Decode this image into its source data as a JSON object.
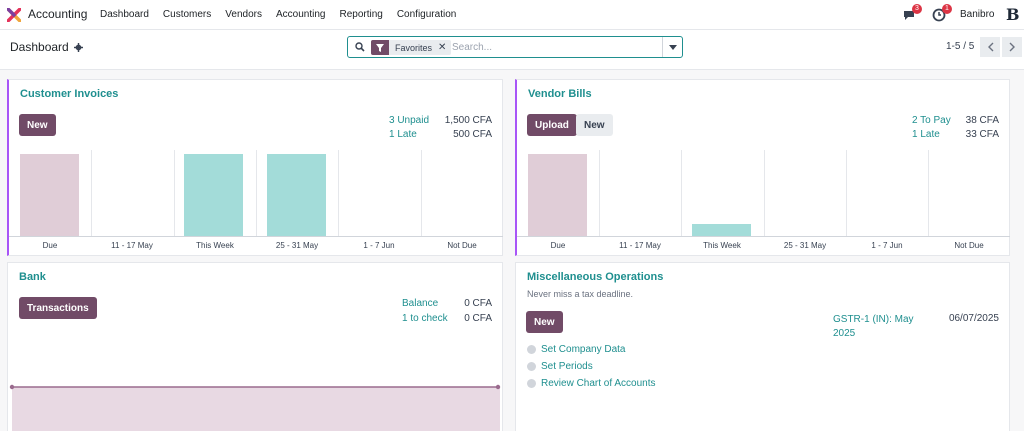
{
  "navbar": {
    "app_name": "Accounting",
    "menu": [
      "Dashboard",
      "Customers",
      "Vendors",
      "Accounting",
      "Reporting",
      "Configuration"
    ],
    "messages_count": "3",
    "activities_count": "1",
    "user_name": "Banibro",
    "user_avatar": "B"
  },
  "control_panel": {
    "title": "Dashboard",
    "facet": "Favorites",
    "search_placeholder": "Search...",
    "pager": "1-5 / 5"
  },
  "customer_invoices": {
    "title": "Customer Invoices",
    "new_label": "New",
    "stats": [
      {
        "label": "3 Unpaid",
        "value": "1,500 CFA"
      },
      {
        "label": "1 Late",
        "value": "500 CFA"
      }
    ],
    "chart_data": {
      "type": "bar",
      "categories": [
        "Due",
        "11 - 17 May",
        "This Week",
        "25 - 31 May",
        "1 - 7 Jun",
        "Not Due"
      ],
      "values": [
        1,
        0,
        1,
        1,
        0,
        0
      ],
      "colors": [
        "#e0cdd7",
        "#a3dcd9",
        "#a3dcd9",
        "#a3dcd9",
        "#a3dcd9",
        "#a3dcd9"
      ]
    }
  },
  "vendor_bills": {
    "title": "Vendor Bills",
    "upload_label": "Upload",
    "new_label": "New",
    "stats": [
      {
        "label": "2 To Pay",
        "value": "38 CFA"
      },
      {
        "label": "1 Late",
        "value": "33 CFA"
      }
    ],
    "chart_data": {
      "type": "bar",
      "categories": [
        "Due",
        "11 - 17 May",
        "This Week",
        "25 - 31 May",
        "1 - 7 Jun",
        "Not Due"
      ],
      "values": [
        33,
        0,
        5,
        0,
        0,
        0
      ],
      "colors": [
        "#e0cdd7",
        "#a3dcd9",
        "#a3dcd9",
        "#a3dcd9",
        "#a3dcd9",
        "#a3dcd9"
      ]
    }
  },
  "bank": {
    "title": "Bank",
    "transactions_label": "Transactions",
    "stats": [
      {
        "label": "Balance",
        "value": "0 CFA"
      },
      {
        "label": "1 to check",
        "value": "0 CFA"
      }
    ]
  },
  "misc": {
    "title": "Miscellaneous Operations",
    "subtitle": "Never miss a tax deadline.",
    "new_label": "New",
    "deadline_label": "GSTR-1 (IN): May 2025",
    "deadline_date": "06/07/2025",
    "todos": [
      "Set Company Data",
      "Set Periods",
      "Review Chart of Accounts"
    ]
  },
  "colors": {
    "primary": "#714b67",
    "link": "#1f8f8f",
    "accent_border": "#a855f7"
  }
}
